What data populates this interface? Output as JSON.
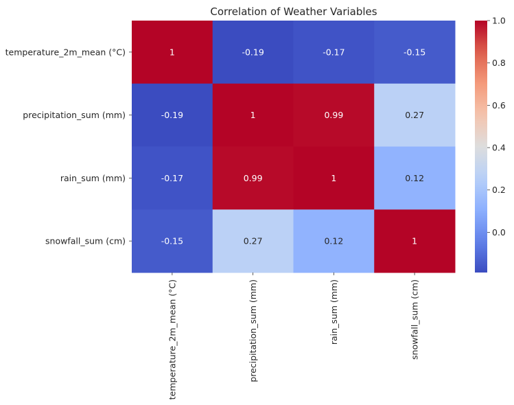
{
  "chart_data": {
    "type": "heatmap",
    "title": "Correlation of Weather Variables",
    "xlabel": "",
    "ylabel": "",
    "row_labels": [
      "temperature_2m_mean (°C)",
      "precipitation_sum (mm)",
      "rain_sum (mm)",
      "snowfall_sum (cm)"
    ],
    "col_labels": [
      "temperature_2m_mean (°C)",
      "precipitation_sum (mm)",
      "rain_sum (mm)",
      "snowfall_sum (cm)"
    ],
    "values": [
      [
        1,
        -0.19,
        -0.17,
        -0.15
      ],
      [
        -0.19,
        1,
        0.99,
        0.27
      ],
      [
        -0.17,
        0.99,
        1,
        0.12
      ],
      [
        -0.15,
        0.27,
        0.12,
        1
      ]
    ],
    "cell_labels": [
      [
        "1",
        "-0.19",
        "-0.17",
        "-0.15"
      ],
      [
        "-0.19",
        "1",
        "0.99",
        "0.27"
      ],
      [
        "-0.17",
        "0.99",
        "1",
        "0.12"
      ],
      [
        "-0.15",
        "0.27",
        "0.12",
        "1"
      ]
    ],
    "colormap": "coolwarm",
    "vmin": -0.19,
    "vmax": 1,
    "colorbar_ticks": [
      "1.0",
      "0.8",
      "0.6",
      "0.4",
      "0.2",
      "0.0"
    ],
    "colorbar_tick_values": [
      1.0,
      0.8,
      0.6,
      0.4,
      0.2,
      0.0
    ],
    "grid": false,
    "legend": "colorbar-right"
  }
}
